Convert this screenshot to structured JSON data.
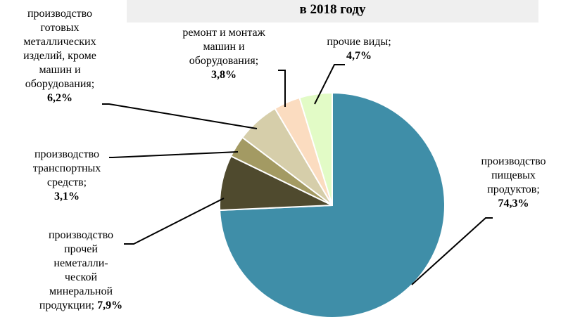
{
  "title": "в 2018 году",
  "chart_data": {
    "type": "pie",
    "title": "в 2018 году",
    "slices": [
      {
        "lines": [
          "производство",
          "пищевых",
          "продуктов;"
        ],
        "value_label": "74,3%",
        "value": 74.3,
        "color": "#3f8ea8"
      },
      {
        "lines": [
          "производство",
          "прочей",
          "неметалли-",
          "ческой",
          "минеральной",
          "продукции;"
        ],
        "value_label": "7,9%",
        "value": 7.9,
        "color": "#4f4a2e"
      },
      {
        "lines": [
          "производство",
          "транспортных",
          "средств;"
        ],
        "value_label": "3,1%",
        "value": 3.1,
        "color": "#a39a63"
      },
      {
        "lines": [
          "производство",
          "готовых",
          "металлических",
          "изделий, кроме",
          "машин и",
          "оборудования;"
        ],
        "value_label": "6,2%",
        "value": 6.2,
        "color": "#d6ceaa"
      },
      {
        "lines": [
          "ремонт и монтаж",
          "машин и",
          "оборудования;"
        ],
        "value_label": "3,8%",
        "value": 3.8,
        "color": "#fbdcc0"
      },
      {
        "lines": [
          "прочие виды;"
        ],
        "value_label": "4,7%",
        "value": 4.7,
        "color": "#e2fbc6"
      }
    ]
  }
}
